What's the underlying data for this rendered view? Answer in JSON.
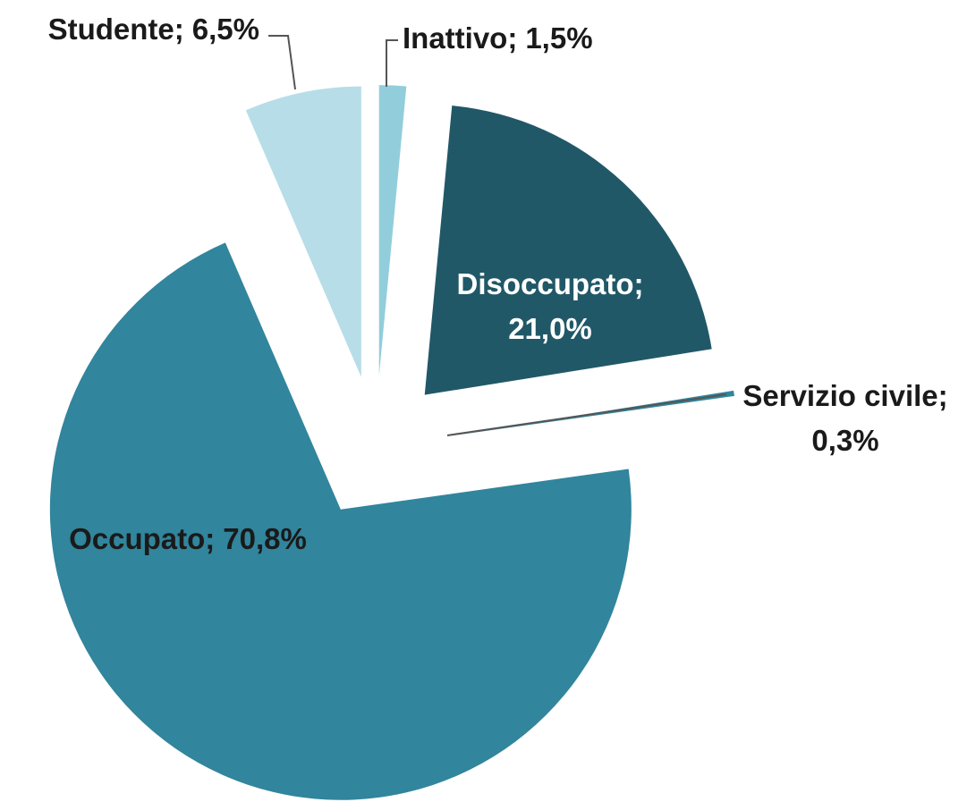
{
  "chart_data": {
    "type": "pie",
    "categories": [
      "Inattivo;",
      "Disoccupato;",
      "Servizio civile;",
      "Occupato;",
      "Studente;"
    ],
    "values": [
      1.5,
      21.0,
      0.3,
      70.8,
      6.5
    ],
    "value_labels": [
      "1,5%",
      "21,0%",
      "0,3%",
      "70,8%",
      "6,5%"
    ],
    "colors": [
      "#92cddc",
      "#215868",
      "#31859c",
      "#31859c",
      "#b7dde8"
    ],
    "start_angle": 0,
    "direction": "clockwise",
    "exploded": true
  }
}
